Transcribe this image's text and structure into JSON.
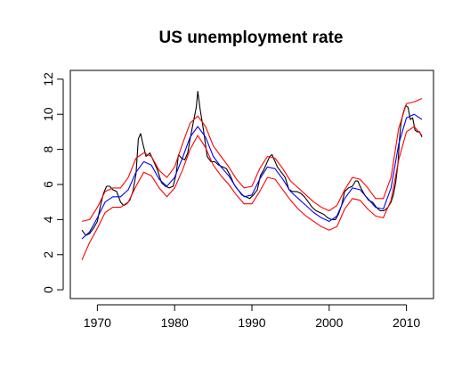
{
  "chart_data": {
    "type": "line",
    "title": "US unemployment rate",
    "xlabel": "",
    "ylabel": "",
    "xlim": [
      1966.5,
      2013.5
    ],
    "ylim": [
      -0.5,
      12.5
    ],
    "x_ticks": [
      1970,
      1980,
      1990,
      2000,
      2010
    ],
    "y_ticks": [
      0,
      2,
      4,
      6,
      8,
      10,
      12
    ],
    "grid": false,
    "legend": "none",
    "series": [
      {
        "color": "#000000",
        "x": [
          1968.0,
          1968.5,
          1969.0,
          1969.5,
          1970.0,
          1970.4,
          1970.8,
          1971.2,
          1971.6,
          1972.0,
          1972.5,
          1973.0,
          1973.4,
          1973.8,
          1974.2,
          1974.6,
          1975.0,
          1975.3,
          1975.6,
          1975.9,
          1976.3,
          1976.8,
          1977.3,
          1977.8,
          1978.3,
          1978.8,
          1979.3,
          1979.8,
          1980.2,
          1980.5,
          1980.9,
          1981.3,
          1981.7,
          1982.0,
          1982.4,
          1982.8,
          1983.0,
          1983.3,
          1983.7,
          1984.2,
          1984.7,
          1985.2,
          1985.7,
          1986.2,
          1986.7,
          1987.2,
          1987.7,
          1988.2,
          1988.7,
          1989.2,
          1989.7,
          1990.2,
          1990.7,
          1991.1,
          1991.5,
          1991.9,
          1992.3,
          1992.6,
          1992.9,
          1993.3,
          1993.8,
          1994.3,
          1994.8,
          1995.3,
          1995.8,
          1996.3,
          1996.8,
          1997.3,
          1997.8,
          1998.3,
          1998.8,
          1999.3,
          1999.8,
          2000.3,
          2000.8,
          2001.2,
          2001.6,
          2002.0,
          2002.5,
          2003.0,
          2003.4,
          2003.7,
          2004.1,
          2004.6,
          2005.1,
          2005.6,
          2006.1,
          2006.6,
          2007.1,
          2007.6,
          2008.0,
          2008.3,
          2008.6,
          2008.9,
          2009.1,
          2009.3,
          2009.6,
          2009.9,
          2010.2,
          2010.5,
          2010.8,
          2011.1,
          2011.4,
          2011.7,
          2012.0
        ],
        "y": [
          3.4,
          3.1,
          3.2,
          3.5,
          3.9,
          4.8,
          5.5,
          5.9,
          5.9,
          5.7,
          5.6,
          5.0,
          4.8,
          4.9,
          5.1,
          5.6,
          6.6,
          8.6,
          8.9,
          8.3,
          7.6,
          7.8,
          7.3,
          6.8,
          6.1,
          5.9,
          5.8,
          5.9,
          6.6,
          7.7,
          7.5,
          7.4,
          7.8,
          8.6,
          9.5,
          10.4,
          11.3,
          10.3,
          9.2,
          7.6,
          7.3,
          7.3,
          7.1,
          7.0,
          6.9,
          6.5,
          6.0,
          5.7,
          5.4,
          5.3,
          5.2,
          5.4,
          5.7,
          6.5,
          6.8,
          7.2,
          7.6,
          7.7,
          7.4,
          7.0,
          6.7,
          6.4,
          5.7,
          5.6,
          5.6,
          5.5,
          5.3,
          5.0,
          4.7,
          4.5,
          4.4,
          4.3,
          4.1,
          4.0,
          4.0,
          4.3,
          4.8,
          5.6,
          5.8,
          5.9,
          6.2,
          6.2,
          5.8,
          5.4,
          5.1,
          5.0,
          4.7,
          4.5,
          4.5,
          4.7,
          5.0,
          5.4,
          6.1,
          7.2,
          8.6,
          9.5,
          10.1,
          10.5,
          10.4,
          9.7,
          9.8,
          9.1,
          9.0,
          9.0,
          8.7
        ]
      },
      {
        "color": "#0000ff",
        "x": [
          1968,
          1969,
          1970,
          1971,
          1972,
          1973,
          1974,
          1975,
          1976,
          1977,
          1978,
          1979,
          1980,
          1981,
          1982,
          1983,
          1984,
          1985,
          1986,
          1987,
          1988,
          1989,
          1990,
          1991,
          1992,
          1993,
          1994,
          1995,
          1996,
          1997,
          1998,
          1999,
          2000,
          2001,
          2002,
          2003,
          2004,
          2005,
          2006,
          2007,
          2008,
          2009,
          2010,
          2011,
          2012
        ],
        "y": [
          2.9,
          3.3,
          4.1,
          5.0,
          5.3,
          5.3,
          5.7,
          6.7,
          7.3,
          7.1,
          6.3,
          5.9,
          6.4,
          7.5,
          8.7,
          9.3,
          8.7,
          7.6,
          7.0,
          6.5,
          5.8,
          5.3,
          5.4,
          6.3,
          7.0,
          6.9,
          6.3,
          5.6,
          5.2,
          4.8,
          4.4,
          4.1,
          3.9,
          4.2,
          5.2,
          5.8,
          5.7,
          5.2,
          4.7,
          4.6,
          5.8,
          8.3,
          9.8,
          10.0,
          9.7
        ]
      },
      {
        "color": "#ff0000",
        "x": [
          1968,
          1969,
          1970,
          1971,
          1972,
          1973,
          1974,
          1975,
          1976,
          1977,
          1978,
          1979,
          1980,
          1981,
          1982,
          1983,
          1984,
          1985,
          1986,
          1987,
          1988,
          1989,
          1990,
          1991,
          1992,
          1993,
          1994,
          1995,
          1996,
          1997,
          1998,
          1999,
          2000,
          2001,
          2002,
          2003,
          2004,
          2005,
          2006,
          2007,
          2008,
          2009,
          2010,
          2011,
          2012
        ],
        "y": [
          3.9,
          4.0,
          4.7,
          5.6,
          5.8,
          5.8,
          6.4,
          7.5,
          7.8,
          7.6,
          6.8,
          6.4,
          7.0,
          8.3,
          9.5,
          9.9,
          9.3,
          8.2,
          7.6,
          7.0,
          6.3,
          5.8,
          5.9,
          6.9,
          7.6,
          7.5,
          6.9,
          6.2,
          5.8,
          5.4,
          5.0,
          4.7,
          4.5,
          4.8,
          5.7,
          6.4,
          6.3,
          5.8,
          5.2,
          5.2,
          6.4,
          9.2,
          10.6,
          10.7,
          10.9
        ]
      },
      {
        "color": "#ff0000",
        "x": [
          1968,
          1969,
          1970,
          1971,
          1972,
          1973,
          1974,
          1975,
          1976,
          1977,
          1978,
          1979,
          1980,
          1981,
          1982,
          1983,
          1984,
          1985,
          1986,
          1987,
          1988,
          1989,
          1990,
          1991,
          1992,
          1993,
          1994,
          1995,
          1996,
          1997,
          1998,
          1999,
          2000,
          2001,
          2002,
          2003,
          2004,
          2005,
          2006,
          2007,
          2008,
          2009,
          2010,
          2011,
          2012
        ],
        "y": [
          1.7,
          2.7,
          3.5,
          4.4,
          4.7,
          4.7,
          5.0,
          5.9,
          6.7,
          6.5,
          5.8,
          5.3,
          5.8,
          6.8,
          8.0,
          8.8,
          8.1,
          7.1,
          6.5,
          6.0,
          5.4,
          4.9,
          4.9,
          5.6,
          6.4,
          6.3,
          5.7,
          5.1,
          4.6,
          4.2,
          3.9,
          3.6,
          3.4,
          3.6,
          4.6,
          5.2,
          5.1,
          4.6,
          4.2,
          4.1,
          5.1,
          7.4,
          9.0,
          9.3,
          8.8
        ]
      }
    ]
  }
}
